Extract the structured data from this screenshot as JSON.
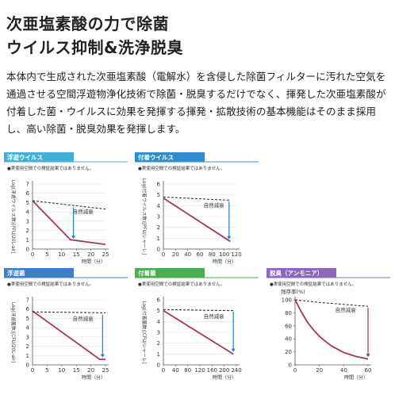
{
  "header": {
    "title_lines": [
      "次亜塩素酸の力で除菌",
      "ウイルス抑制&洗浄脱臭"
    ]
  },
  "description": "本体内で生成された次亜塩素酸（電解水）を含侵した除菌フィルターに汚れた空気を通過させる空間浮遊物浄化技術で除菌・脱臭するだけでなく、揮発した次亜塩素酸が付着した菌・ウイルスに効果を発揮する揮発・拡散技術の基本機能はそのまま採用し、高い除菌・脱臭効果を発揮します。",
  "chart_data": [
    {
      "type": "line",
      "title": "浮遊ウイルス",
      "header_color": "#3fb2dc",
      "note": "●実使用空間での検証結果ではありません。",
      "ylabel": "Log(浮遊ウイルス数)[PFU/20L-air]",
      "xlabel": "時間（分）",
      "ylabel_orientation": "vertical",
      "grid": true,
      "xlim": [
        0,
        25
      ],
      "xticks": [
        0,
        5,
        10,
        15,
        20,
        25
      ],
      "ylim": [
        0,
        7
      ],
      "yticks": [
        0,
        1,
        2,
        3,
        4,
        5,
        6,
        7
      ],
      "series": [
        {
          "color": "#a3336a",
          "dash": false,
          "x": [
            0,
            13,
            25
          ],
          "values": [
            5.2,
            1.0,
            0.5
          ]
        },
        {
          "color": "#222222",
          "dash": true,
          "annotation": "自然減衰",
          "x": [
            0,
            25
          ],
          "values": [
            5.2,
            4.3
          ]
        }
      ],
      "arrow": {
        "color": "#1f7fc0",
        "x": 14,
        "from": 4.5,
        "to": 1.1
      }
    },
    {
      "type": "line",
      "title": "付着ウイルス",
      "header_color": "#2a8fd0",
      "note": "●実使用空間での検証結果ではありません。",
      "ylabel": "Log(付着ウイルス数)[PFU/シャーレ]",
      "xlabel": "時間（分）",
      "ylabel_orientation": "vertical",
      "grid": true,
      "xlim": [
        0,
        120
      ],
      "xticks": [
        0,
        20,
        40,
        60,
        80,
        100,
        120
      ],
      "ylim": [
        0,
        6
      ],
      "yticks": [
        0,
        1,
        2,
        3,
        4,
        5,
        6
      ],
      "series": [
        {
          "color": "#a3336a",
          "dash": false,
          "x": [
            0,
            110
          ],
          "values": [
            4.7,
            0.7
          ]
        },
        {
          "color": "#222222",
          "dash": true,
          "annotation": "自然減衰",
          "x": [
            0,
            110
          ],
          "values": [
            4.8,
            4.5
          ]
        }
      ],
      "arrow": {
        "color": "#1f7fc0",
        "x": 108,
        "from": 4.4,
        "to": 0.9
      }
    },
    {
      "type": "line",
      "title": "浮遊菌",
      "header_color": "#3a7fc8",
      "note": "●実使用空間での検証結果ではありません。",
      "ylabel": "Log(浮遊菌数)[CFU/20L-air]",
      "xlabel": "時間（分）",
      "ylabel_orientation": "vertical",
      "grid": true,
      "xlim": [
        0,
        25
      ],
      "xticks": [
        0,
        5,
        10,
        15,
        20,
        25
      ],
      "ylim": [
        0,
        7
      ],
      "yticks": [
        0,
        1,
        2,
        3,
        4,
        5,
        6,
        7
      ],
      "series": [
        {
          "color": "#a3336a",
          "dash": false,
          "x": [
            0,
            23,
            25
          ],
          "values": [
            5.8,
            0.6,
            0.6
          ]
        },
        {
          "color": "#222222",
          "dash": true,
          "annotation": "自然減衰",
          "x": [
            0,
            25
          ],
          "values": [
            5.7,
            5.6
          ]
        }
      ],
      "arrow": {
        "color": "#1f7fc0",
        "x": 24,
        "from": 5.4,
        "to": 0.8
      }
    },
    {
      "type": "line",
      "title": "付着菌",
      "header_color": "#4aae4e",
      "note": "●実使用空間での検証結果ではありません。",
      "ylabel": "Log(付着菌数)[CFU/シャーレ]",
      "xlabel": "時間（分）",
      "ylabel_orientation": "vertical",
      "grid": true,
      "xlim": [
        0,
        240
      ],
      "xticks": [
        0,
        40,
        80,
        120,
        160,
        200,
        240
      ],
      "ylim": [
        0,
        6
      ],
      "yticks": [
        0,
        1,
        2,
        3,
        4,
        5,
        6
      ],
      "series": [
        {
          "color": "#a3336a",
          "dash": false,
          "x": [
            0,
            230
          ],
          "values": [
            5.0,
            1.0
          ]
        },
        {
          "color": "#222222",
          "dash": true,
          "annotation": "自然減衰",
          "x": [
            0,
            230
          ],
          "values": [
            5.1,
            5.0
          ]
        }
      ],
      "arrow": {
        "color": "#1f7fc0",
        "x": 230,
        "from": 4.9,
        "to": 1.2
      }
    },
    {
      "type": "line",
      "title": "脱臭（アンモニア）",
      "header_color": "#8c67bd",
      "note": "●実使用空間での検証結果ではありません。",
      "ylabel": "残存率(%)",
      "xlabel": "時間（分）",
      "ylabel_orientation": "horizontal",
      "grid": false,
      "xlim": [
        0,
        60
      ],
      "xticks": [
        0,
        20,
        40,
        60
      ],
      "ylim": [
        0,
        100
      ],
      "yticks": [
        0,
        20,
        40,
        60,
        80,
        100
      ],
      "series": [
        {
          "color": "#a3336a",
          "dash": false,
          "x": [
            0,
            5,
            10,
            15,
            20,
            25,
            30,
            35,
            40,
            45,
            50,
            55,
            60
          ],
          "values": [
            100,
            82,
            66,
            54,
            44,
            36,
            29,
            24,
            19,
            16,
            13,
            11,
            9
          ]
        },
        {
          "color": "#222222",
          "dash": true,
          "annotation": "自然減衰",
          "x": [
            0,
            20,
            40,
            60
          ],
          "values": [
            100,
            96,
            93,
            90
          ]
        }
      ],
      "arrow": {
        "color": "#a3336a",
        "x": 60,
        "from": 88,
        "to": 12
      }
    }
  ]
}
